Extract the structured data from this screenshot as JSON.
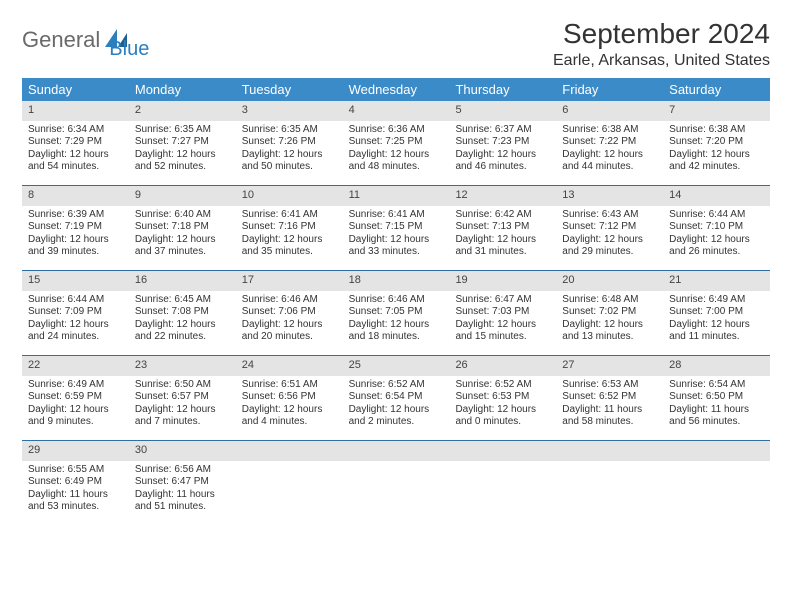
{
  "logo": {
    "word1": "General",
    "word2": "Blue"
  },
  "title": "September 2024",
  "subtitle": "Earle, Arkansas, United States",
  "colors": {
    "header_bg": "#3b8bc8",
    "header_text": "#ffffff",
    "daynum_bg": "#e4e4e4",
    "week_border": "#2f6fa3",
    "body_text": "#333333",
    "logo_gray": "#6a6a6a",
    "logo_blue": "#2b7fbf"
  },
  "day_headers": [
    "Sunday",
    "Monday",
    "Tuesday",
    "Wednesday",
    "Thursday",
    "Friday",
    "Saturday"
  ],
  "weeks": [
    [
      {
        "n": "1",
        "sr": "Sunrise: 6:34 AM",
        "ss": "Sunset: 7:29 PM",
        "d1": "Daylight: 12 hours",
        "d2": "and 54 minutes."
      },
      {
        "n": "2",
        "sr": "Sunrise: 6:35 AM",
        "ss": "Sunset: 7:27 PM",
        "d1": "Daylight: 12 hours",
        "d2": "and 52 minutes."
      },
      {
        "n": "3",
        "sr": "Sunrise: 6:35 AM",
        "ss": "Sunset: 7:26 PM",
        "d1": "Daylight: 12 hours",
        "d2": "and 50 minutes."
      },
      {
        "n": "4",
        "sr": "Sunrise: 6:36 AM",
        "ss": "Sunset: 7:25 PM",
        "d1": "Daylight: 12 hours",
        "d2": "and 48 minutes."
      },
      {
        "n": "5",
        "sr": "Sunrise: 6:37 AM",
        "ss": "Sunset: 7:23 PM",
        "d1": "Daylight: 12 hours",
        "d2": "and 46 minutes."
      },
      {
        "n": "6",
        "sr": "Sunrise: 6:38 AM",
        "ss": "Sunset: 7:22 PM",
        "d1": "Daylight: 12 hours",
        "d2": "and 44 minutes."
      },
      {
        "n": "7",
        "sr": "Sunrise: 6:38 AM",
        "ss": "Sunset: 7:20 PM",
        "d1": "Daylight: 12 hours",
        "d2": "and 42 minutes."
      }
    ],
    [
      {
        "n": "8",
        "sr": "Sunrise: 6:39 AM",
        "ss": "Sunset: 7:19 PM",
        "d1": "Daylight: 12 hours",
        "d2": "and 39 minutes."
      },
      {
        "n": "9",
        "sr": "Sunrise: 6:40 AM",
        "ss": "Sunset: 7:18 PM",
        "d1": "Daylight: 12 hours",
        "d2": "and 37 minutes."
      },
      {
        "n": "10",
        "sr": "Sunrise: 6:41 AM",
        "ss": "Sunset: 7:16 PM",
        "d1": "Daylight: 12 hours",
        "d2": "and 35 minutes."
      },
      {
        "n": "11",
        "sr": "Sunrise: 6:41 AM",
        "ss": "Sunset: 7:15 PM",
        "d1": "Daylight: 12 hours",
        "d2": "and 33 minutes."
      },
      {
        "n": "12",
        "sr": "Sunrise: 6:42 AM",
        "ss": "Sunset: 7:13 PM",
        "d1": "Daylight: 12 hours",
        "d2": "and 31 minutes."
      },
      {
        "n": "13",
        "sr": "Sunrise: 6:43 AM",
        "ss": "Sunset: 7:12 PM",
        "d1": "Daylight: 12 hours",
        "d2": "and 29 minutes."
      },
      {
        "n": "14",
        "sr": "Sunrise: 6:44 AM",
        "ss": "Sunset: 7:10 PM",
        "d1": "Daylight: 12 hours",
        "d2": "and 26 minutes."
      }
    ],
    [
      {
        "n": "15",
        "sr": "Sunrise: 6:44 AM",
        "ss": "Sunset: 7:09 PM",
        "d1": "Daylight: 12 hours",
        "d2": "and 24 minutes."
      },
      {
        "n": "16",
        "sr": "Sunrise: 6:45 AM",
        "ss": "Sunset: 7:08 PM",
        "d1": "Daylight: 12 hours",
        "d2": "and 22 minutes."
      },
      {
        "n": "17",
        "sr": "Sunrise: 6:46 AM",
        "ss": "Sunset: 7:06 PM",
        "d1": "Daylight: 12 hours",
        "d2": "and 20 minutes."
      },
      {
        "n": "18",
        "sr": "Sunrise: 6:46 AM",
        "ss": "Sunset: 7:05 PM",
        "d1": "Daylight: 12 hours",
        "d2": "and 18 minutes."
      },
      {
        "n": "19",
        "sr": "Sunrise: 6:47 AM",
        "ss": "Sunset: 7:03 PM",
        "d1": "Daylight: 12 hours",
        "d2": "and 15 minutes."
      },
      {
        "n": "20",
        "sr": "Sunrise: 6:48 AM",
        "ss": "Sunset: 7:02 PM",
        "d1": "Daylight: 12 hours",
        "d2": "and 13 minutes."
      },
      {
        "n": "21",
        "sr": "Sunrise: 6:49 AM",
        "ss": "Sunset: 7:00 PM",
        "d1": "Daylight: 12 hours",
        "d2": "and 11 minutes."
      }
    ],
    [
      {
        "n": "22",
        "sr": "Sunrise: 6:49 AM",
        "ss": "Sunset: 6:59 PM",
        "d1": "Daylight: 12 hours",
        "d2": "and 9 minutes."
      },
      {
        "n": "23",
        "sr": "Sunrise: 6:50 AM",
        "ss": "Sunset: 6:57 PM",
        "d1": "Daylight: 12 hours",
        "d2": "and 7 minutes."
      },
      {
        "n": "24",
        "sr": "Sunrise: 6:51 AM",
        "ss": "Sunset: 6:56 PM",
        "d1": "Daylight: 12 hours",
        "d2": "and 4 minutes."
      },
      {
        "n": "25",
        "sr": "Sunrise: 6:52 AM",
        "ss": "Sunset: 6:54 PM",
        "d1": "Daylight: 12 hours",
        "d2": "and 2 minutes."
      },
      {
        "n": "26",
        "sr": "Sunrise: 6:52 AM",
        "ss": "Sunset: 6:53 PM",
        "d1": "Daylight: 12 hours",
        "d2": "and 0 minutes."
      },
      {
        "n": "27",
        "sr": "Sunrise: 6:53 AM",
        "ss": "Sunset: 6:52 PM",
        "d1": "Daylight: 11 hours",
        "d2": "and 58 minutes."
      },
      {
        "n": "28",
        "sr": "Sunrise: 6:54 AM",
        "ss": "Sunset: 6:50 PM",
        "d1": "Daylight: 11 hours",
        "d2": "and 56 minutes."
      }
    ],
    [
      {
        "n": "29",
        "sr": "Sunrise: 6:55 AM",
        "ss": "Sunset: 6:49 PM",
        "d1": "Daylight: 11 hours",
        "d2": "and 53 minutes."
      },
      {
        "n": "30",
        "sr": "Sunrise: 6:56 AM",
        "ss": "Sunset: 6:47 PM",
        "d1": "Daylight: 11 hours",
        "d2": "and 51 minutes."
      },
      null,
      null,
      null,
      null,
      null
    ]
  ]
}
